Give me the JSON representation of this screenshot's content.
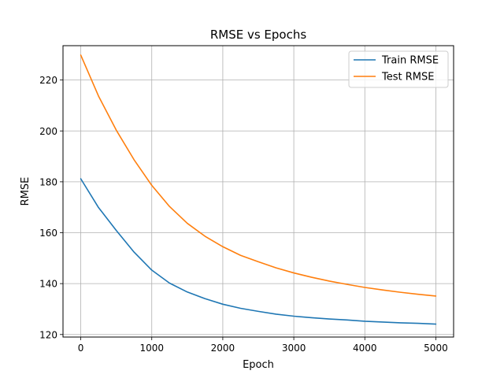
{
  "chart_data": {
    "type": "line",
    "title": "RMSE vs Epochs",
    "xlabel": "Epoch",
    "ylabel": "RMSE",
    "xlim": [
      -250,
      5250
    ],
    "ylim": [
      119,
      233.5
    ],
    "x_ticks": [
      0,
      1000,
      2000,
      3000,
      4000,
      5000
    ],
    "y_ticks": [
      120,
      140,
      160,
      180,
      200,
      220
    ],
    "grid": true,
    "legend": "top-right",
    "x": [
      0,
      250,
      500,
      750,
      1000,
      1250,
      1500,
      1750,
      2000,
      2250,
      2500,
      2750,
      3000,
      3250,
      3500,
      3750,
      4000,
      4250,
      4500,
      4750,
      5000
    ],
    "series": [
      {
        "name": "Train RMSE",
        "color": "#1f77b4",
        "values": [
          181.2,
          169.9,
          160.9,
          152.4,
          145.3,
          140.2,
          136.7,
          134.1,
          131.9,
          130.3,
          129.1,
          128.0,
          127.2,
          126.6,
          126.1,
          125.7,
          125.2,
          124.9,
          124.6,
          124.4,
          124.1
        ]
      },
      {
        "name": "Test RMSE",
        "color": "#ff7f0e",
        "values": [
          229.8,
          213.7,
          200.3,
          188.7,
          178.6,
          170.3,
          163.7,
          158.6,
          154.5,
          151.1,
          148.6,
          146.2,
          144.2,
          142.5,
          141.0,
          139.7,
          138.5,
          137.5,
          136.6,
          135.8,
          135.1
        ]
      }
    ]
  }
}
